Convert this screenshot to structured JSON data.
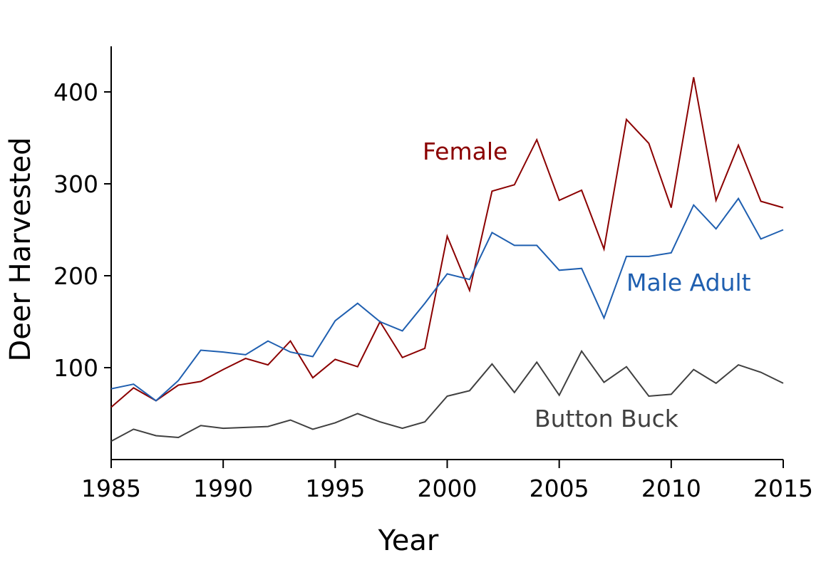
{
  "chart_data": {
    "type": "line",
    "title": "",
    "xlabel": "Year",
    "ylabel": "Deer Harvested",
    "xlim": [
      1985,
      2015
    ],
    "ylim": [
      0,
      450
    ],
    "grid": false,
    "legend_position": "inline labels",
    "x_ticks": [
      1985,
      1990,
      1995,
      2000,
      2005,
      2010,
      2015
    ],
    "y_ticks": [
      100,
      200,
      300,
      400
    ],
    "x": [
      1985,
      1986,
      1987,
      1988,
      1989,
      1990,
      1991,
      1992,
      1993,
      1994,
      1995,
      1996,
      1997,
      1998,
      1999,
      2000,
      2001,
      2002,
      2003,
      2004,
      2005,
      2006,
      2007,
      2008,
      2009,
      2010,
      2011,
      2012,
      2013,
      2014,
      2015
    ],
    "series": [
      {
        "name": "Female",
        "color": "#8b0000",
        "label_pos": [
          593,
          224
        ],
        "values": [
          57,
          78,
          64,
          81,
          85,
          98,
          110,
          103,
          129,
          89,
          109,
          101,
          150,
          111,
          121,
          243,
          184,
          292,
          299,
          348,
          282,
          293,
          229,
          370,
          344,
          274,
          416,
          282,
          342,
          281,
          274
        ]
      },
      {
        "name": "Male Adult",
        "color": "#1f5fb0",
        "label_pos": [
          879,
          408
        ],
        "values": [
          77,
          82,
          64,
          86,
          119,
          117,
          114,
          129,
          117,
          112,
          151,
          170,
          150,
          140,
          170,
          202,
          196,
          247,
          233,
          233,
          206,
          208,
          154,
          221,
          221,
          225,
          277,
          251,
          284,
          240,
          250
        ]
      },
      {
        "name": "Button Buck",
        "color": "#404040",
        "label_pos": [
          750,
          599
        ],
        "values": [
          20,
          33,
          26,
          24,
          37,
          34,
          35,
          36,
          43,
          33,
          40,
          50,
          41,
          34,
          41,
          69,
          75,
          104,
          73,
          106,
          70,
          118,
          84,
          101,
          69,
          71,
          98,
          83,
          103,
          95,
          83
        ]
      }
    ]
  }
}
